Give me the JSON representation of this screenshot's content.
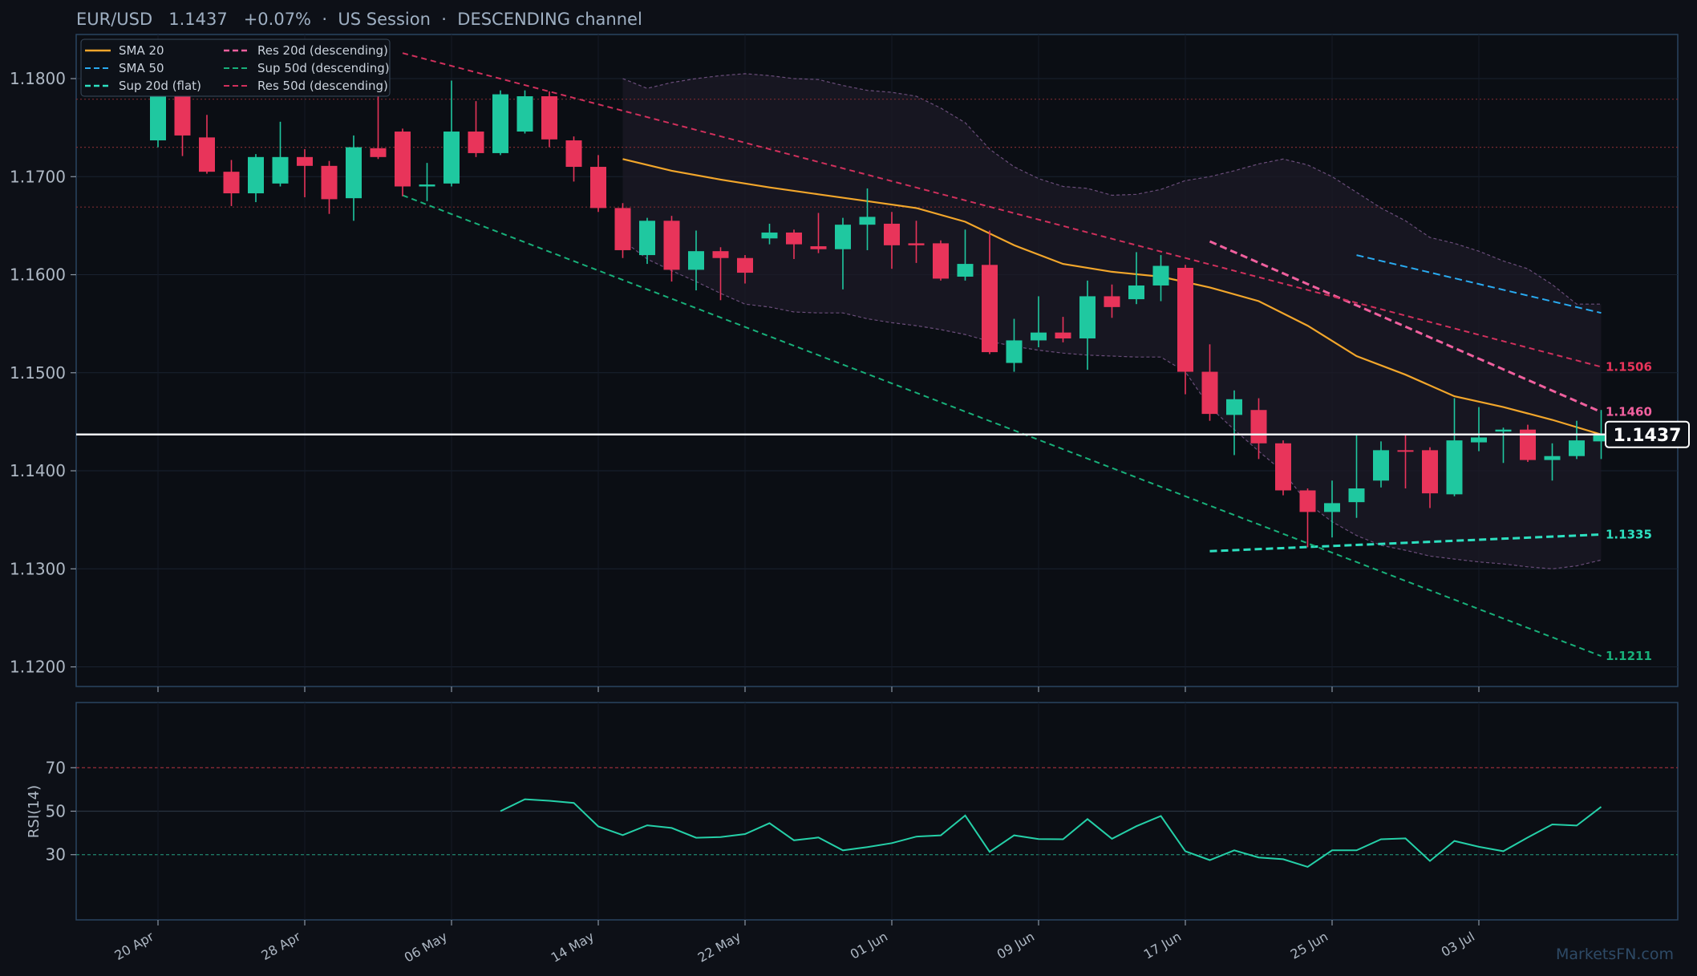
{
  "header": {
    "title": "EUR/USD   1.1437   +0.07%  ·  US Session  ·  DESCENDING channel"
  },
  "watermark": "MarketsFN.com",
  "colors": {
    "background": "#0d1017",
    "bull": "#1fc8a0",
    "bear": "#e8345a",
    "sma20": "#f2a62b",
    "sma50": "#29aaf0",
    "sup20": "#2de0c0",
    "res20": "#f0609e",
    "sup50": "#18b07a",
    "res50": "#d0305c",
    "rsi": "#25d0a8"
  },
  "chart_data": [
    {
      "type": "candlestick",
      "title": "EUR/USD   1.1437   +0.07%  ·  US Session  ·  DESCENDING channel",
      "ylim": [
        1.118,
        1.1845
      ],
      "yticks": [
        "1.1200",
        "1.1300",
        "1.1400",
        "1.1500",
        "1.1600",
        "1.1700",
        "1.1800"
      ],
      "xticks": [
        {
          "label": "20 Apr",
          "x": 0
        },
        {
          "label": "28 Apr",
          "x": 6
        },
        {
          "label": "06 May",
          "x": 12
        },
        {
          "label": "14 May",
          "x": 18
        },
        {
          "label": "22 May",
          "x": 24
        },
        {
          "label": "01 Jun",
          "x": 30
        },
        {
          "label": "09 Jun",
          "x": 36
        },
        {
          "label": "17 Jun",
          "x": 42
        },
        {
          "label": "25 Jun",
          "x": 48
        },
        {
          "label": "03 Jul",
          "x": 54
        }
      ],
      "candles": [
        [
          1.1737,
          1.1786,
          1.1791,
          1.173
        ],
        [
          1.1786,
          1.1742,
          1.1789,
          1.1721
        ],
        [
          1.174,
          1.1705,
          1.1763,
          1.1703
        ],
        [
          1.1705,
          1.1683,
          1.1717,
          1.167
        ],
        [
          1.1683,
          1.172,
          1.1723,
          1.1674
        ],
        [
          1.1693,
          1.172,
          1.1756,
          1.169
        ],
        [
          1.172,
          1.1711,
          1.1728,
          1.1679
        ],
        [
          1.1711,
          1.1677,
          1.1716,
          1.1662
        ],
        [
          1.1678,
          1.173,
          1.1742,
          1.1655
        ],
        [
          1.1729,
          1.172,
          1.1786,
          1.1718
        ],
        [
          1.1746,
          1.169,
          1.1749,
          1.168
        ],
        [
          1.169,
          1.1692,
          1.1714,
          1.1675
        ],
        [
          1.1693,
          1.1746,
          1.1798,
          1.169
        ],
        [
          1.1746,
          1.1724,
          1.1777,
          1.172
        ],
        [
          1.1724,
          1.1784,
          1.1788,
          1.1722
        ],
        [
          1.1746,
          1.1782,
          1.1788,
          1.1744
        ],
        [
          1.1782,
          1.1738,
          1.1787,
          1.173
        ],
        [
          1.1737,
          1.171,
          1.1741,
          1.1695
        ],
        [
          1.171,
          1.1668,
          1.1722,
          1.1664
        ],
        [
          1.1668,
          1.1625,
          1.1673,
          1.1617
        ],
        [
          1.162,
          1.1655,
          1.1658,
          1.1611
        ],
        [
          1.1655,
          1.1605,
          1.166,
          1.1593
        ],
        [
          1.1605,
          1.1624,
          1.1645,
          1.1584
        ],
        [
          1.1624,
          1.1617,
          1.1628,
          1.1574
        ],
        [
          1.1617,
          1.1602,
          1.162,
          1.1591
        ],
        [
          1.1637,
          1.1643,
          1.1652,
          1.1631
        ],
        [
          1.1643,
          1.1631,
          1.1646,
          1.1616
        ],
        [
          1.1629,
          1.1626,
          1.1663,
          1.1622
        ],
        [
          1.1626,
          1.1651,
          1.1658,
          1.1585
        ],
        [
          1.1651,
          1.1659,
          1.1688,
          1.1625
        ],
        [
          1.1652,
          1.163,
          1.1664,
          1.1606
        ],
        [
          1.1632,
          1.163,
          1.1655,
          1.1612
        ],
        [
          1.1632,
          1.1596,
          1.1635,
          1.1594
        ],
        [
          1.1598,
          1.1611,
          1.1646,
          1.1594
        ],
        [
          1.161,
          1.1521,
          1.1645,
          1.1519
        ],
        [
          1.151,
          1.1533,
          1.1555,
          1.1501
        ],
        [
          1.1533,
          1.1541,
          1.1578,
          1.1526
        ],
        [
          1.1541,
          1.1535,
          1.1557,
          1.1531
        ],
        [
          1.1535,
          1.1578,
          1.1594,
          1.1503
        ],
        [
          1.1578,
          1.1567,
          1.159,
          1.1556
        ],
        [
          1.1575,
          1.1589,
          1.1623,
          1.157
        ],
        [
          1.1589,
          1.1609,
          1.162,
          1.1573
        ],
        [
          1.1607,
          1.1501,
          1.161,
          1.1478
        ],
        [
          1.1501,
          1.1458,
          1.1529,
          1.1451
        ],
        [
          1.1457,
          1.1473,
          1.1482,
          1.1416
        ],
        [
          1.1462,
          1.1428,
          1.1474,
          1.1412
        ],
        [
          1.1428,
          1.138,
          1.1431,
          1.1375
        ],
        [
          1.138,
          1.1358,
          1.1382,
          1.1322
        ],
        [
          1.1358,
          1.1367,
          1.139,
          1.1332
        ],
        [
          1.1368,
          1.1382,
          1.1436,
          1.1352
        ],
        [
          1.139,
          1.1421,
          1.143,
          1.1383
        ],
        [
          1.1421,
          1.142,
          1.1438,
          1.1382
        ],
        [
          1.1421,
          1.1377,
          1.1424,
          1.1362
        ],
        [
          1.1376,
          1.1431,
          1.1474,
          1.1374
        ],
        [
          1.1429,
          1.1434,
          1.1465,
          1.142
        ],
        [
          1.144,
          1.1442,
          1.1444,
          1.1408
        ],
        [
          1.1442,
          1.1411,
          1.1447,
          1.1409
        ],
        [
          1.1411,
          1.1415,
          1.1428,
          1.139
        ],
        [
          1.1415,
          1.1431,
          1.1451,
          1.1412
        ],
        [
          1.143,
          1.1437,
          1.1462,
          1.1412
        ]
      ],
      "envelope": {
        "x": [
          19,
          20,
          21,
          22,
          23,
          24,
          25,
          26,
          27,
          28,
          29,
          30,
          31,
          32,
          33,
          34,
          35,
          36,
          37,
          38,
          39,
          40,
          41,
          42,
          43,
          44,
          45,
          46,
          47,
          48,
          49,
          50,
          51,
          52,
          53,
          54,
          55,
          56,
          57,
          58,
          59
        ],
        "upper": [
          1.18,
          1.179,
          1.1796,
          1.18,
          1.1803,
          1.1805,
          1.1803,
          1.18,
          1.1799,
          1.1793,
          1.1788,
          1.1786,
          1.1782,
          1.177,
          1.1755,
          1.1728,
          1.171,
          1.1698,
          1.169,
          1.1688,
          1.1681,
          1.1682,
          1.1687,
          1.1696,
          1.17,
          1.1706,
          1.1713,
          1.1718,
          1.1712,
          1.17,
          1.1684,
          1.1668,
          1.1655,
          1.1638,
          1.1632,
          1.1624,
          1.1614,
          1.1606,
          1.159,
          1.157,
          1.157
        ],
        "lower": [
          1.1635,
          1.1616,
          1.1604,
          1.1593,
          1.1581,
          1.157,
          1.1567,
          1.1562,
          1.1561,
          1.1561,
          1.1555,
          1.1551,
          1.1548,
          1.1544,
          1.1539,
          1.1532,
          1.1527,
          1.1523,
          1.152,
          1.1518,
          1.1517,
          1.1516,
          1.1516,
          1.1501,
          1.1465,
          1.1442,
          1.142,
          1.1399,
          1.1367,
          1.1348,
          1.1334,
          1.1324,
          1.1319,
          1.1313,
          1.131,
          1.1307,
          1.1305,
          1.1302,
          1.13,
          1.1303,
          1.1309
        ]
      },
      "series": [
        {
          "name": "SMA 20",
          "style": "solid",
          "color": "#f2a62b",
          "x": [
            19,
            21,
            23,
            25,
            27,
            29,
            31,
            33,
            35,
            37,
            39,
            41,
            43,
            45,
            47,
            49,
            51,
            53,
            55,
            57,
            59
          ],
          "y": [
            1.1718,
            1.1706,
            1.1697,
            1.1689,
            1.1682,
            1.1675,
            1.1668,
            1.1654,
            1.163,
            1.1611,
            1.1603,
            1.1598,
            1.1587,
            1.1573,
            1.1548,
            1.1517,
            1.1498,
            1.1476,
            1.1465,
            1.1452,
            1.1437
          ]
        },
        {
          "name": "SMA 50",
          "style": "dashed",
          "color": "#29aaf0",
          "x": [
            49,
            59
          ],
          "y": [
            1.162,
            1.1561
          ]
        },
        {
          "name": "Sup 20d (flat)",
          "style": "dashed",
          "color": "#2de0c0",
          "x": [
            43,
            59
          ],
          "y": [
            1.1318,
            1.1335
          ]
        },
        {
          "name": "Res 20d (descending)",
          "style": "dashed",
          "color": "#f0609e",
          "x": [
            43,
            59
          ],
          "y": [
            1.1634,
            1.146
          ]
        },
        {
          "name": "Sup 50d (descending)",
          "style": "dashed",
          "color": "#18b07a",
          "x": [
            10,
            59
          ],
          "y": [
            1.1681,
            1.1211
          ]
        },
        {
          "name": "Res 50d (descending)",
          "style": "dashed",
          "color": "#d0305c",
          "x": [
            10,
            59
          ],
          "y": [
            1.1826,
            1.1506
          ]
        }
      ],
      "horizontal_levels": [
        1.1779,
        1.173,
        1.1669
      ],
      "current_price": 1.1437,
      "level_labels": [
        {
          "text": "1.1506",
          "y": 1.1506,
          "color": "#e8345a"
        },
        {
          "text": "1.1460",
          "y": 1.146,
          "color": "#f0609e"
        },
        {
          "text": "1.1335",
          "y": 1.1335,
          "color": "#2de0c0"
        },
        {
          "text": "1.1211",
          "y": 1.1211,
          "color": "#18b07a"
        }
      ],
      "current_price_label": "1.1437",
      "legend": {
        "position": "top-left",
        "columns": 2
      }
    },
    {
      "type": "line",
      "ylabel": "RSI(14)",
      "ylim": [
        0,
        100
      ],
      "yticks": [
        "30",
        "50",
        "70"
      ],
      "ref_lines": [
        70,
        50,
        30
      ],
      "series": [
        {
          "color": "#25d0a8",
          "x": [
            14,
            15,
            16,
            17,
            18,
            19,
            20,
            21,
            22,
            23,
            24,
            25,
            26,
            27,
            28,
            29,
            30,
            31,
            32,
            33,
            34,
            35,
            36,
            37,
            38,
            39,
            40,
            41,
            42,
            43,
            44,
            45,
            46,
            47,
            48,
            49,
            50,
            51,
            52,
            53,
            54,
            55,
            56,
            57,
            58,
            59
          ],
          "y": [
            50,
            55.5,
            54.8,
            53.8,
            43,
            39,
            43.5,
            42.3,
            37.8,
            38.1,
            39.5,
            44.5,
            36.6,
            37.9,
            32,
            33.5,
            35.3,
            38.3,
            38.9,
            48,
            31.3,
            38.9,
            37.2,
            37.1,
            46.4,
            37.3,
            43.1,
            47.8,
            31.6,
            27.5,
            32,
            28.7,
            27.9,
            24.4,
            32,
            32,
            37.1,
            37.5,
            27.1,
            36.3,
            33.6,
            31.6,
            37.9,
            43.9,
            43.4,
            52
          ]
        }
      ]
    }
  ]
}
